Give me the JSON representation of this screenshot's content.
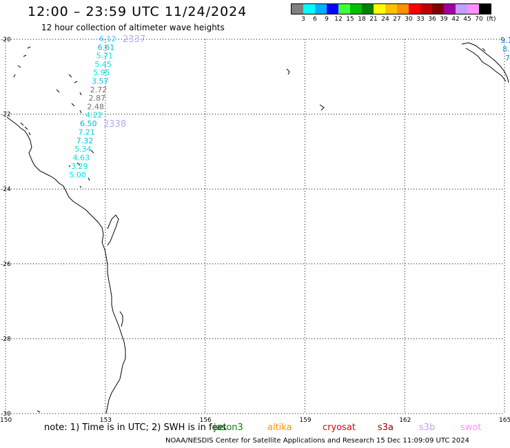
{
  "title": "12:00 – 23:59 UTC 11/24/2024",
  "subtitle": "12 hour collection of altimeter wave heights",
  "colorbar": {
    "colors": [
      "#808080",
      "#00ffff",
      "#00b0ff",
      "#0000ff",
      "#40ff40",
      "#00c000",
      "#008000",
      "#ffff00",
      "#ffc000",
      "#ff9000",
      "#ff0000",
      "#c00000",
      "#800000",
      "#a000a0",
      "#c0a0ff",
      "#ff90ff",
      "#000000"
    ],
    "ticks": [
      "3",
      "6",
      "9",
      "12",
      "15",
      "18",
      "21",
      "24",
      "27",
      "30",
      "33",
      "36",
      "39",
      "42",
      "45",
      "70"
    ],
    "unit": "(ft)"
  },
  "axes": {
    "lat_labels": [
      "-20",
      "-22",
      "-24",
      "-26",
      "-28",
      "-30"
    ],
    "lon_labels": [
      "150",
      "153",
      "156",
      "159",
      "162",
      "165"
    ],
    "lat_range": [
      -30,
      -20
    ],
    "lon_range": [
      150,
      165
    ]
  },
  "tracks": [
    {
      "pass_label": "2337",
      "pass_color": "#b8a8f0",
      "points": [
        {
          "value": "6.12",
          "color": "#40c8ff"
        },
        {
          "value": "6.61",
          "color": "#00b8d8"
        },
        {
          "value": "5.71",
          "color": "#00e0e0"
        },
        {
          "value": "5.45",
          "color": "#00e0e0"
        },
        {
          "value": "5.95",
          "color": "#00e0e0"
        },
        {
          "value": "3.57",
          "color": "#00c8e0"
        },
        {
          "value": "2.72",
          "color": "#707070"
        },
        {
          "value": "2.87",
          "color": "#707070"
        },
        {
          "value": "2.48",
          "color": "#707070"
        },
        {
          "value": "4.22",
          "color": "#00e0e0"
        }
      ]
    },
    {
      "pass_label": "2338",
      "pass_color": "#b8a8f0",
      "points": [
        {
          "value": "6.50",
          "color": "#00b8d8"
        },
        {
          "value": "7.21",
          "color": "#00c8e0"
        },
        {
          "value": "7.32",
          "color": "#00b8d8"
        },
        {
          "value": "5.34",
          "color": "#00e0e0"
        },
        {
          "value": "4.63",
          "color": "#00e0e0"
        },
        {
          "value": "3.29",
          "color": "#00e0e0"
        },
        {
          "value": "5.00",
          "color": "#00e0e0"
        }
      ]
    }
  ],
  "edge_values": [
    {
      "value": "9.1",
      "color": "#0060e0"
    },
    {
      "value": "8.",
      "color": "#00b0ff"
    },
    {
      "value": "7",
      "color": "#0090d0"
    }
  ],
  "footer": {
    "note": "note: 1) Time is in UTC; 2) SWH is in feet",
    "missions": [
      {
        "name": "jason3",
        "color": "#008000"
      },
      {
        "name": "altika",
        "color": "#ff9000"
      },
      {
        "name": "cryosat",
        "color": "#e00000"
      },
      {
        "name": "s3a",
        "color": "#a00000"
      },
      {
        "name": "s3b",
        "color": "#c0a0ff"
      },
      {
        "name": "swot",
        "color": "#ff90ff"
      }
    ],
    "credit": "NOAA/NESDIS Center for Satellite Applications and Research    15 Dec 11:09:09 UTC 2024"
  }
}
